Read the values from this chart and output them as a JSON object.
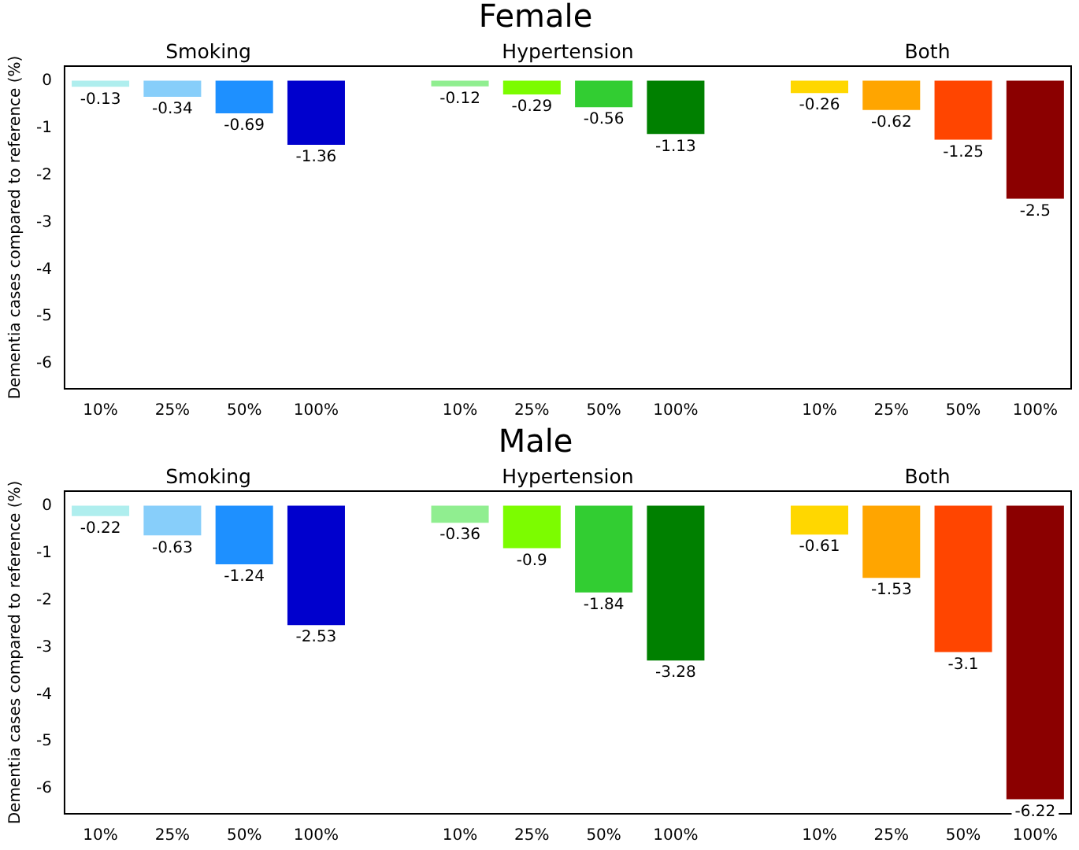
{
  "chart_data": [
    {
      "type": "bar",
      "title": "Female",
      "ylabel": "Dementia cases compared to reference (%)",
      "categories": [
        "10%",
        "25%",
        "50%",
        "100%",
        null,
        "10%",
        "25%",
        "50%",
        "100%",
        null,
        "10%",
        "25%",
        "50%",
        "100%"
      ],
      "values": [
        -0.13,
        -0.34,
        -0.69,
        -1.36,
        null,
        -0.12,
        -0.29,
        -0.56,
        -1.13,
        null,
        -0.26,
        -0.62,
        -1.25,
        -2.5
      ],
      "colors": [
        "#afeeee",
        "#87cefa",
        "#1e90ff",
        "#0000cd",
        null,
        "#90ee90",
        "#7cfc00",
        "#32cd32",
        "#008000",
        null,
        "#ffd700",
        "#ffa500",
        "#ff4500",
        "#8b0000"
      ],
      "ylim": [
        -6.53,
        0.31
      ],
      "yticks": [
        0,
        -1,
        -2,
        -3,
        -4,
        -5,
        -6
      ],
      "grid": false,
      "legend": false,
      "data_labels": true,
      "annotations": [
        "Smoking",
        "Hypertension",
        "Both"
      ]
    },
    {
      "type": "bar",
      "title": "Male",
      "ylabel": "Dementia cases compared to reference (%)",
      "categories": [
        "10%",
        "25%",
        "50%",
        "100%",
        null,
        "10%",
        "25%",
        "50%",
        "100%",
        null,
        "10%",
        "25%",
        "50%",
        "100%"
      ],
      "values": [
        -0.22,
        -0.63,
        -1.24,
        -2.53,
        null,
        -0.36,
        -0.9,
        -1.84,
        -3.28,
        null,
        -0.61,
        -1.53,
        -3.1,
        -6.22
      ],
      "colors": [
        "#afeeee",
        "#87cefa",
        "#1e90ff",
        "#0000cd",
        null,
        "#90ee90",
        "#7cfc00",
        "#32cd32",
        "#008000",
        null,
        "#ffd700",
        "#ffa500",
        "#ff4500",
        "#8b0000"
      ],
      "ylim": [
        -6.53,
        0.31
      ],
      "yticks": [
        0,
        -1,
        -2,
        -3,
        -4,
        -5,
        -6
      ],
      "grid": false,
      "legend": false,
      "data_labels": true,
      "annotations": [
        "Smoking",
        "Hypertension",
        "Both"
      ]
    }
  ]
}
